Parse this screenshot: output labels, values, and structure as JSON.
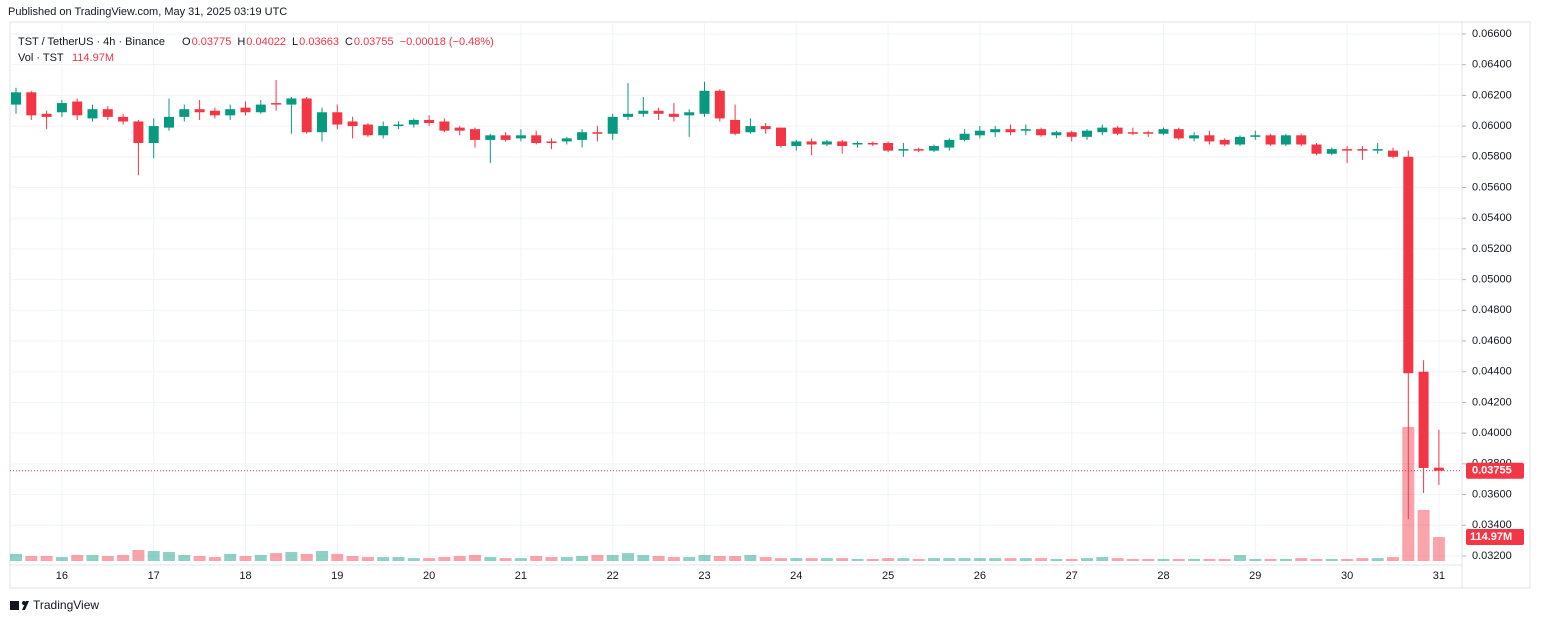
{
  "published": "Published on TradingView.com, May 31, 2025 03:19 UTC",
  "brand": "TradingView",
  "chart_data": {
    "type": "candlestick",
    "title": "TST / TetherUS · 4h · Binance",
    "ohlc_labels": [
      "O",
      "H",
      "L",
      "C"
    ],
    "change": "−0.00018 (−0.48%)",
    "volume_title": "Vol · TST",
    "volume_label": "114.97M",
    "up_color": "#089981",
    "down_color": "#f23645",
    "grid": true,
    "categories": [
      null,
      null,
      null,
      "16",
      null,
      null,
      null,
      null,
      null,
      "17",
      null,
      null,
      null,
      null,
      null,
      "18",
      null,
      null,
      null,
      null,
      null,
      "19",
      null,
      null,
      null,
      null,
      null,
      "20",
      null,
      null,
      null,
      null,
      null,
      "21",
      null,
      null,
      null,
      null,
      null,
      "22",
      null,
      null,
      null,
      null,
      null,
      "23",
      null,
      null,
      null,
      null,
      null,
      "24",
      null,
      null,
      null,
      null,
      null,
      "25",
      null,
      null,
      null,
      null,
      null,
      "26",
      null,
      null,
      null,
      null,
      null,
      "27",
      null,
      null,
      null,
      null,
      null,
      "28",
      null,
      null,
      null,
      null,
      null,
      "29",
      null,
      null,
      null,
      null,
      null,
      "30",
      null,
      null,
      null,
      null,
      null,
      "31"
    ],
    "open": [
      0.0614,
      0.0622,
      0.0608,
      0.0609,
      0.0616,
      0.0605,
      0.0611,
      0.0606,
      0.0603,
      0.0589,
      0.0599,
      0.0606,
      0.0611,
      0.061,
      0.0607,
      0.0612,
      0.0609,
      0.0615,
      0.0614,
      0.0618,
      0.0596,
      0.0609,
      0.0603,
      0.0601,
      0.0594,
      0.06,
      0.0601,
      0.0604,
      0.0603,
      0.0599,
      0.0598,
      0.0591,
      0.0594,
      0.0592,
      0.0594,
      0.059,
      0.059,
      0.0591,
      0.0596,
      0.0595,
      0.0606,
      0.0608,
      0.061,
      0.0608,
      0.0607,
      0.0608,
      0.0623,
      0.0604,
      0.0596,
      0.06,
      0.0599,
      0.0587,
      0.059,
      0.0588,
      0.059,
      0.0588,
      0.0589,
      0.0589,
      0.0584,
      0.0585,
      0.0584,
      0.0586,
      0.0591,
      0.0594,
      0.0596,
      0.0598,
      0.0597,
      0.0598,
      0.0594,
      0.0596,
      0.0593,
      0.0596,
      0.0599,
      0.0596,
      0.0596,
      0.0595,
      0.0598,
      0.0592,
      0.0594,
      0.0591,
      0.0588,
      0.0593,
      0.0594,
      0.0588,
      0.0594,
      0.0588,
      0.0582,
      0.0585,
      0.0585,
      0.0584,
      0.0584,
      0.058,
      0.044,
      0.03775
    ],
    "high": [
      0.0625,
      0.0623,
      0.061,
      0.0617,
      0.0618,
      0.0614,
      0.0613,
      0.0608,
      0.0604,
      0.0605,
      0.0618,
      0.0614,
      0.0617,
      0.0612,
      0.0614,
      0.0616,
      0.0617,
      0.063,
      0.0619,
      0.0619,
      0.0612,
      0.0614,
      0.0606,
      0.0602,
      0.0603,
      0.0603,
      0.0605,
      0.0607,
      0.0605,
      0.06,
      0.0599,
      0.0595,
      0.0596,
      0.0598,
      0.0597,
      0.0592,
      0.0593,
      0.0598,
      0.06,
      0.0608,
      0.0628,
      0.0619,
      0.0612,
      0.0615,
      0.0611,
      0.0629,
      0.0624,
      0.0614,
      0.0605,
      0.0602,
      0.0599,
      0.0591,
      0.0592,
      0.0591,
      0.0591,
      0.059,
      0.059,
      0.059,
      0.0589,
      0.0586,
      0.0588,
      0.0592,
      0.0598,
      0.06,
      0.06,
      0.0601,
      0.0601,
      0.0599,
      0.0597,
      0.0597,
      0.0598,
      0.0601,
      0.06,
      0.0599,
      0.0597,
      0.0599,
      0.0599,
      0.0596,
      0.0597,
      0.0592,
      0.0594,
      0.0597,
      0.0595,
      0.0595,
      0.0595,
      0.0589,
      0.0586,
      0.0587,
      0.0587,
      0.0589,
      0.0586,
      0.0584,
      0.04475,
      0.04022
    ],
    "low": [
      0.0608,
      0.0604,
      0.0598,
      0.0606,
      0.0604,
      0.0603,
      0.0604,
      0.0601,
      0.0568,
      0.0579,
      0.0597,
      0.0603,
      0.0604,
      0.0605,
      0.0604,
      0.0607,
      0.0608,
      0.061,
      0.0595,
      0.0595,
      0.059,
      0.0598,
      0.0592,
      0.0593,
      0.0592,
      0.0598,
      0.0599,
      0.06,
      0.0596,
      0.0594,
      0.0586,
      0.0576,
      0.059,
      0.059,
      0.0588,
      0.0585,
      0.0588,
      0.0586,
      0.059,
      0.0591,
      0.0604,
      0.0606,
      0.0604,
      0.0603,
      0.0593,
      0.0606,
      0.0603,
      0.0594,
      0.0595,
      0.0595,
      0.0586,
      0.0584,
      0.0581,
      0.0587,
      0.0582,
      0.0586,
      0.0587,
      0.0583,
      0.058,
      0.0583,
      0.0583,
      0.0584,
      0.059,
      0.0592,
      0.0593,
      0.0594,
      0.0594,
      0.0593,
      0.0592,
      0.059,
      0.0591,
      0.0594,
      0.0594,
      0.0594,
      0.0593,
      0.0594,
      0.0591,
      0.059,
      0.0588,
      0.0587,
      0.0587,
      0.0591,
      0.0587,
      0.0587,
      0.0587,
      0.0581,
      0.0581,
      0.0576,
      0.0578,
      0.0582,
      0.0579,
      0.0344,
      0.0361,
      0.03663
    ],
    "close": [
      0.0622,
      0.0607,
      0.0606,
      0.0615,
      0.0607,
      0.0611,
      0.0606,
      0.0603,
      0.0589,
      0.06,
      0.0606,
      0.0611,
      0.0609,
      0.0607,
      0.0611,
      0.0609,
      0.0614,
      0.0614,
      0.0618,
      0.0596,
      0.0609,
      0.0601,
      0.06,
      0.0594,
      0.06,
      0.0601,
      0.0604,
      0.0602,
      0.0597,
      0.0597,
      0.0591,
      0.0594,
      0.0591,
      0.0594,
      0.0589,
      0.0589,
      0.0592,
      0.0596,
      0.0595,
      0.0606,
      0.0608,
      0.061,
      0.0608,
      0.0606,
      0.0609,
      0.0623,
      0.0605,
      0.0595,
      0.06,
      0.0598,
      0.0587,
      0.059,
      0.0588,
      0.059,
      0.0587,
      0.0589,
      0.0588,
      0.0584,
      0.0585,
      0.0584,
      0.0587,
      0.0591,
      0.0595,
      0.0597,
      0.0598,
      0.0596,
      0.0598,
      0.0594,
      0.0596,
      0.0593,
      0.0597,
      0.0599,
      0.0595,
      0.0595,
      0.0595,
      0.0598,
      0.0592,
      0.0594,
      0.059,
      0.0588,
      0.0593,
      0.0594,
      0.0588,
      0.0594,
      0.0588,
      0.0582,
      0.0585,
      0.0584,
      0.0584,
      0.0585,
      0.058,
      0.0439,
      0.03773,
      0.03755
    ],
    "volume": [
      34,
      24,
      24,
      19,
      29,
      29,
      24,
      29,
      53,
      48,
      43,
      29,
      24,
      19,
      34,
      24,
      29,
      38,
      43,
      34,
      48,
      34,
      24,
      19,
      19,
      19,
      14,
      14,
      19,
      24,
      29,
      19,
      14,
      14,
      24,
      19,
      19,
      24,
      29,
      29,
      38,
      29,
      24,
      19,
      19,
      29,
      24,
      24,
      29,
      19,
      14,
      14,
      14,
      14,
      14,
      10,
      10,
      14,
      14,
      10,
      14,
      14,
      14,
      14,
      14,
      14,
      14,
      14,
      10,
      10,
      14,
      19,
      14,
      10,
      10,
      10,
      10,
      10,
      10,
      10,
      29,
      10,
      10,
      10,
      14,
      10,
      10,
      10,
      14,
      14,
      19,
      643,
      245,
      114.97
    ],
    "ylim": [
      0.03141,
      0.06678
    ],
    "yticks": [
      {
        "value": 0.032,
        "label": "0.03200"
      },
      {
        "value": 0.034,
        "label": "0.03400"
      },
      {
        "value": 0.036,
        "label": "0.03600"
      },
      {
        "value": 0.038,
        "label": "0.03800"
      },
      {
        "value": 0.04,
        "label": "0.04000"
      },
      {
        "value": 0.042,
        "label": "0.04200"
      },
      {
        "value": 0.044,
        "label": "0.04400"
      },
      {
        "value": 0.046,
        "label": "0.04600"
      },
      {
        "value": 0.048,
        "label": "0.04800"
      },
      {
        "value": 0.05,
        "label": "0.05000"
      },
      {
        "value": 0.052,
        "label": "0.05200"
      },
      {
        "value": 0.054,
        "label": "0.05400"
      },
      {
        "value": 0.056,
        "label": "0.05600"
      },
      {
        "value": 0.058,
        "label": "0.05800"
      },
      {
        "value": 0.06,
        "label": "0.06000"
      },
      {
        "value": 0.062,
        "label": "0.06200"
      },
      {
        "value": 0.064,
        "label": "0.06400"
      },
      {
        "value": 0.066,
        "label": "0.06600"
      }
    ]
  }
}
